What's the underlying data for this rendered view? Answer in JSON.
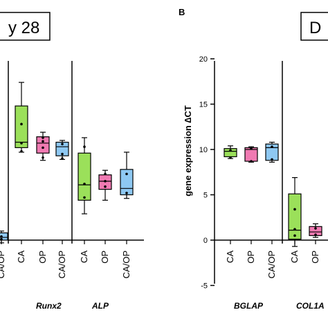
{
  "panel_b_label": "B",
  "title_box_left": "y 28",
  "title_box_right": "D",
  "colors": {
    "CA": "#9be05a",
    "OP": "#f07ab2",
    "CA/OP": "#8ec8f2"
  },
  "chart_data": [
    {
      "type": "box",
      "panel": "A",
      "title": "y 28",
      "ylim": [
        -5,
        20
      ],
      "x_group_labels": [
        "Runx2",
        "ALP"
      ],
      "categories": [
        "CA/OP",
        "CA",
        "OP",
        "CA/OP",
        "CA",
        "OP",
        "CA/OP"
      ],
      "groups": [
        {
          "gene": "",
          "boxes": [
            {
              "cat": "CA/OP",
              "min": -0.3,
              "q1": 0.0,
              "median": 0.3,
              "q3": 0.8,
              "max": 1.0,
              "points": [
                0.1,
                0.4
              ]
            }
          ]
        },
        {
          "gene": "Runx2",
          "boxes": [
            {
              "cat": "CA",
              "min": 9.7,
              "q1": 10.2,
              "median": 10.8,
              "q3": 14.8,
              "max": 17.4,
              "points": [
                9.8,
                10.7,
                12.8
              ]
            },
            {
              "cat": "OP",
              "min": 8.8,
              "q1": 9.6,
              "median": 10.7,
              "q3": 11.4,
              "max": 11.9,
              "points": [
                9.1,
                10.2,
                10.9,
                11.3
              ]
            },
            {
              "cat": "CA/OP",
              "min": 8.9,
              "q1": 9.3,
              "median": 10.3,
              "q3": 10.8,
              "max": 11.0,
              "points": [
                9.0,
                9.5,
                10.6
              ]
            }
          ]
        },
        {
          "gene": "ALP",
          "boxes": [
            {
              "cat": "CA",
              "min": 2.9,
              "q1": 4.4,
              "median": 6.1,
              "q3": 9.6,
              "max": 11.3,
              "points": [
                4.7,
                6.2,
                10.3
              ]
            },
            {
              "cat": "OP",
              "min": 4.4,
              "q1": 5.6,
              "median": 6.5,
              "q3": 7.2,
              "max": 7.7,
              "points": [
                5.9,
                6.5,
                7.3
              ]
            },
            {
              "cat": "CA/OP",
              "min": 4.6,
              "q1": 5.0,
              "median": 5.7,
              "q3": 7.8,
              "max": 9.7,
              "points": [
                5.2,
                7.3
              ]
            }
          ]
        }
      ]
    },
    {
      "type": "box",
      "panel": "B",
      "title": "D",
      "ylabel": "gene expression ∆CT",
      "ylim": [
        -5,
        20
      ],
      "yticks": [
        -5,
        0,
        5,
        10,
        15,
        20
      ],
      "x_group_labels": [
        "BGLAP",
        "COL1A"
      ],
      "categories": [
        "CA",
        "OP",
        "CA/OP",
        "CA",
        "OP"
      ],
      "groups": [
        {
          "gene": "BGLAP",
          "boxes": [
            {
              "cat": "CA",
              "min": 9.0,
              "q1": 9.2,
              "median": 9.8,
              "q3": 10.1,
              "max": 10.4,
              "points": [
                9.1,
                9.9
              ]
            },
            {
              "cat": "OP",
              "min": 8.6,
              "q1": 8.7,
              "median": 10.0,
              "q3": 10.2,
              "max": 10.3,
              "points": [
                8.7,
                10.1
              ]
            },
            {
              "cat": "CA/OP",
              "min": 8.6,
              "q1": 8.8,
              "median": 10.2,
              "q3": 10.6,
              "max": 10.8,
              "points": [
                8.9,
                10.3
              ]
            }
          ]
        },
        {
          "gene": "COL1A",
          "boxes": [
            {
              "cat": "CA",
              "min": -0.7,
              "q1": 0.1,
              "median": 1.1,
              "q3": 5.1,
              "max": 6.9,
              "points": [
                0.5,
                1.2,
                3.4
              ]
            },
            {
              "cat": "OP",
              "min": 0.3,
              "q1": 0.5,
              "median": 0.9,
              "q3": 1.5,
              "max": 1.8,
              "points": [
                0.6,
                1.3
              ]
            }
          ]
        }
      ]
    }
  ]
}
